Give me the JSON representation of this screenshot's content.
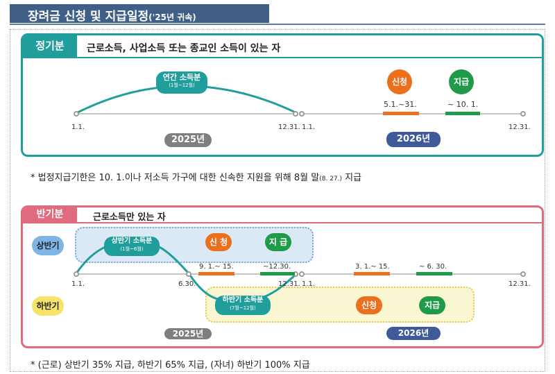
{
  "title": {
    "main": "장려금 신청 및 지급일정",
    "sub": "('25년 귀속)"
  },
  "regular": {
    "tag": "정기분",
    "desc": "근로소득, 사업소득 또는 종교인 소득이 있는 자",
    "annual_label": "연간 소득분",
    "annual_period": "(1월~12월)",
    "ticks": {
      "start_2025": "1.1.",
      "end_2025": "12.31.",
      "start_2026": "1.1.",
      "end_2026": "12.31."
    },
    "apply_pin": "신청",
    "pay_pin": "지급",
    "apply_range": "5.1.~31.",
    "pay_range": "~ 10. 1.",
    "year_2025": "2025년",
    "year_2026": "2026년"
  },
  "note1": {
    "text": "* 법정지급기한은 10. 1.이나 저소득 가구에 대한 신속한 지원을 위해 8월 말",
    "small": "(8. 27.)",
    "tail": " 지급"
  },
  "half": {
    "tag": "반기분",
    "desc": "근로소득만 있는 자",
    "first_half": "상반기",
    "second_half": "하반기",
    "first_income": "상반기 소득분",
    "first_period": "(1월~6월)",
    "second_income": "하반기 소득분",
    "second_period": "(7월~12월)",
    "ticks": {
      "start_2025": "1.1.",
      "mid_2025": "6.30.",
      "end_2025": "12.31.",
      "start_2026": "1.1.",
      "end_2026": "12.31."
    },
    "apply_pin": "신 청",
    "pay_pin": "지 급",
    "apply_pin2": "신청",
    "pay_pin2": "지급",
    "apply_range1": "9. 1.~ 15.",
    "pay_range1": "~12.30.",
    "apply_range2": "3. 1.~ 15.",
    "pay_range2": "~ 6. 30.",
    "year_2025": "2025년",
    "year_2026": "2026년"
  },
  "note2": {
    "text": "* (근로) 상반기 35% 지급, 하반기 65% 지급, (자녀) 하반기 100% 지급"
  },
  "colors": {
    "teal": "#1f9e9c",
    "pink": "#e06a7e",
    "orange": "#ec6f1d",
    "green": "#1f9a48",
    "navy": "#3f5a9a"
  }
}
